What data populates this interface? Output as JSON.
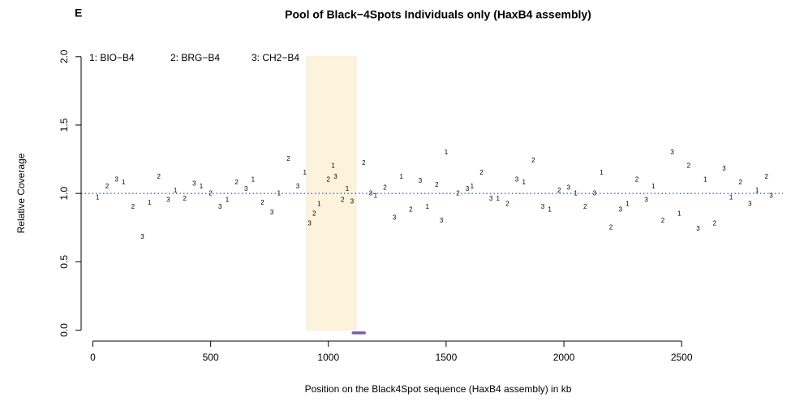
{
  "chart_data": {
    "type": "scatter",
    "panel_label": "E",
    "title": "Pool of Black−4Spots Individuals only (HaxB4 assembly)",
    "x_label": "Position on the Black4Spot sequence (HaxB4 assembly) in kb",
    "y_label": "Relative Coverage",
    "xlim": [
      -50,
      2930
    ],
    "ylim": [
      -0.08,
      2.07
    ],
    "xticks": [
      0,
      500,
      1000,
      1500,
      2000,
      2500
    ],
    "yticks": [
      {
        "value": 0,
        "label": "0.0"
      },
      {
        "value": 0.5,
        "label": "0.5"
      },
      {
        "value": 1,
        "label": "1.0"
      },
      {
        "value": 1.5,
        "label": "1.5"
      },
      {
        "value": 2,
        "label": "2.0"
      }
    ],
    "reference_line": {
      "y": 1,
      "color": "#3a6fb5"
    },
    "highlight": {
      "x": [
        907,
        1118
      ],
      "y": [
        0,
        2
      ],
      "color": "#fdf3dc"
    },
    "segment": {
      "x": [
        1105,
        1153
      ],
      "y": -0.02,
      "color": "#7b5ea7"
    },
    "series": [
      {
        "name": "1: BIO−B4",
        "marker": "1",
        "color": "#000000",
        "x": [
          20,
          130,
          240,
          350,
          460,
          570,
          680,
          790,
          900,
          960,
          1020,
          1080,
          1200,
          1310,
          1420,
          1500,
          1610,
          1720,
          1830,
          1940,
          2050,
          2160,
          2270,
          2380,
          2490,
          2600,
          2710,
          2820
        ],
        "values": [
          0.97,
          1.08,
          0.93,
          1.02,
          1.05,
          0.95,
          1.1,
          1.0,
          1.15,
          0.92,
          1.2,
          1.03,
          0.98,
          1.12,
          0.9,
          1.3,
          1.05,
          0.96,
          1.08,
          0.88,
          1.0,
          1.15,
          0.92,
          1.05,
          0.85,
          1.1,
          0.97,
          1.02
        ]
      },
      {
        "name": "2: BRG−B4",
        "marker": "2",
        "color": "#000000",
        "x": [
          60,
          170,
          280,
          390,
          500,
          610,
          720,
          830,
          940,
          1000,
          1060,
          1150,
          1240,
          1350,
          1460,
          1550,
          1650,
          1760,
          1870,
          1980,
          2090,
          2200,
          2310,
          2420,
          2530,
          2640,
          2750,
          2860
        ],
        "values": [
          1.05,
          0.9,
          1.12,
          0.96,
          1.0,
          1.08,
          0.93,
          1.25,
          0.85,
          1.1,
          0.95,
          1.22,
          1.04,
          0.88,
          1.06,
          1.0,
          1.15,
          0.92,
          1.24,
          1.02,
          0.9,
          0.75,
          1.1,
          0.8,
          1.2,
          0.78,
          1.08,
          1.12
        ]
      },
      {
        "name": "3: CH2−B4",
        "marker": "3",
        "color": "#000000",
        "x": [
          100,
          210,
          320,
          430,
          540,
          650,
          760,
          870,
          920,
          1030,
          1100,
          1180,
          1280,
          1390,
          1480,
          1590,
          1690,
          1800,
          1910,
          2020,
          2130,
          2240,
          2350,
          2460,
          2570,
          2680,
          2790,
          2880
        ],
        "values": [
          1.1,
          0.68,
          0.95,
          1.07,
          0.9,
          1.03,
          0.86,
          1.05,
          0.78,
          1.12,
          0.94,
          1.0,
          0.82,
          1.09,
          0.8,
          1.03,
          0.96,
          1.1,
          0.9,
          1.04,
          1.0,
          0.88,
          0.95,
          1.3,
          0.74,
          1.18,
          0.92,
          0.98
        ]
      }
    ]
  }
}
